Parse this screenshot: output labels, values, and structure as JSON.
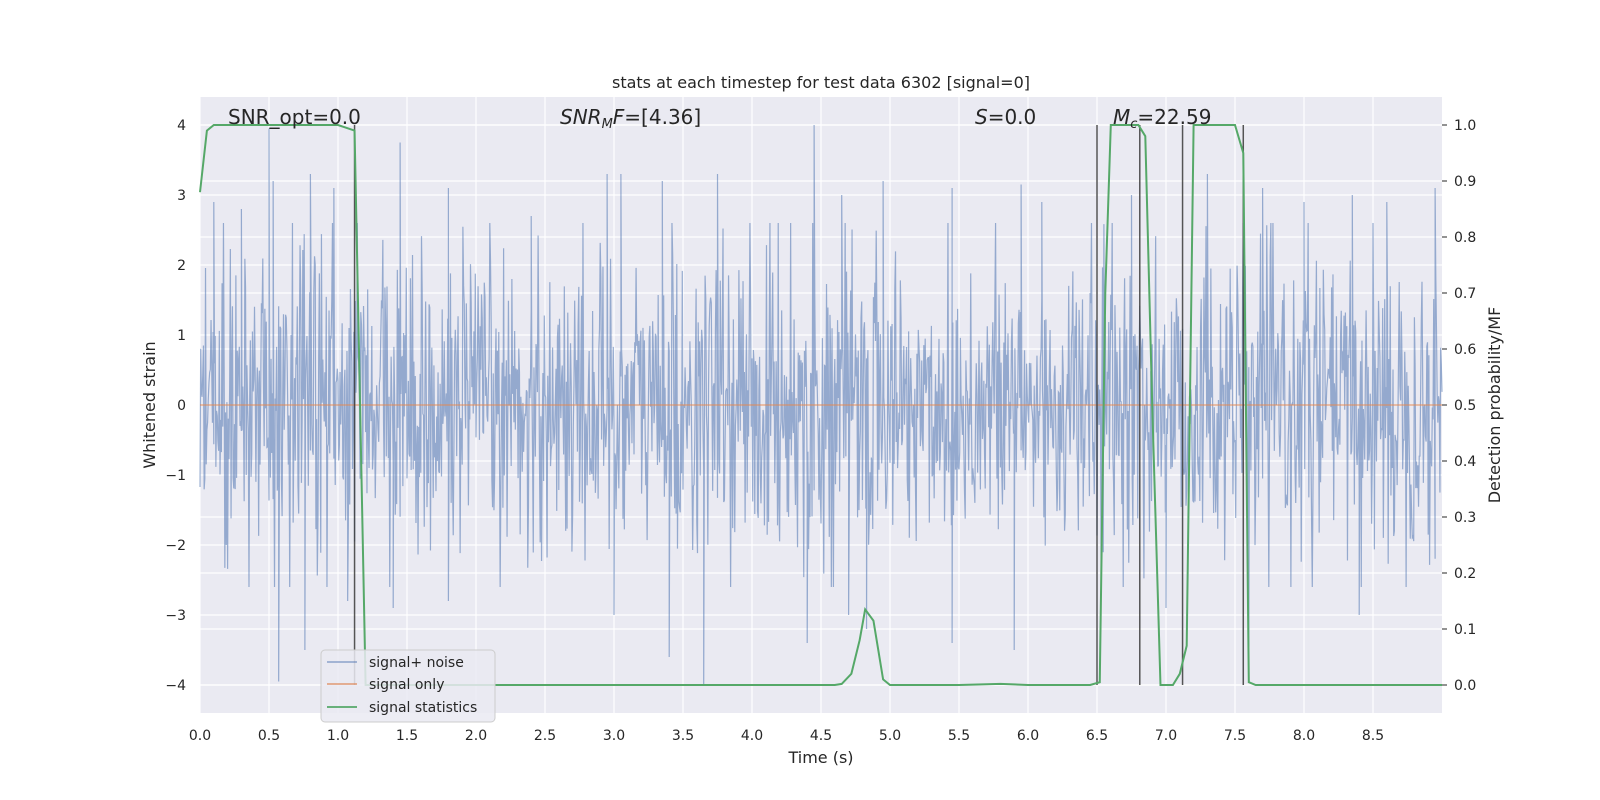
{
  "chart_data": {
    "type": "line",
    "title": "stats at each timestep for test data 6302 [signal=0]",
    "xlabel": "Time (s)",
    "ylabel": "Whitened strain",
    "y2label": "Detection probability/MF",
    "xlim": [
      0.0,
      9.0
    ],
    "ylim": [
      -4.4,
      4.4
    ],
    "y2lim": [
      -0.05,
      1.05
    ],
    "xticks": [
      "0.0",
      "0.5",
      "1.0",
      "1.5",
      "2.0",
      "2.5",
      "3.0",
      "3.5",
      "4.0",
      "4.5",
      "5.0",
      "5.5",
      "6.0",
      "6.5",
      "7.0",
      "7.5",
      "8.0",
      "8.5"
    ],
    "yticks": [
      "4",
      "3",
      "2",
      "1",
      "0",
      "−1",
      "−2",
      "−3",
      "−4"
    ],
    "y2ticks": [
      "1.0",
      "0.9",
      "0.8",
      "0.7",
      "0.6",
      "0.5",
      "0.4",
      "0.3",
      "0.2",
      "0.1",
      "0.0"
    ],
    "grid": true,
    "legend_position": "lower-left",
    "legend": [
      "signal+ noise",
      "signal only",
      "signal statistics"
    ],
    "annotations": [
      {
        "text": "SNR_opt=0.0",
        "x": 0.2
      },
      {
        "text": "SNR_MF=[4.36]",
        "x": 2.6
      },
      {
        "text": "S=0.0",
        "x": 5.6
      },
      {
        "text": "M_c=22.59",
        "x": 6.7
      }
    ],
    "series": [
      {
        "name": "signal+ noise",
        "color": "#4c72b0",
        "note": "dense whitened-strain noise, bulk within about ±2.2, peaks to ±4",
        "peaks_up": [
          [
            0.1,
            2.9
          ],
          [
            0.3,
            2.8
          ],
          [
            0.5,
            3.95
          ],
          [
            0.53,
            3.2
          ],
          [
            0.8,
            3.3
          ],
          [
            0.97,
            3.1
          ],
          [
            1.45,
            3.75
          ],
          [
            1.8,
            3.1
          ],
          [
            2.4,
            2.7
          ],
          [
            2.95,
            3.3
          ],
          [
            3.05,
            3.3
          ],
          [
            3.35,
            3.2
          ],
          [
            3.75,
            3.3
          ],
          [
            4.45,
            4.0
          ],
          [
            4.65,
            3.0
          ],
          [
            4.95,
            3.2
          ],
          [
            5.45,
            3.1
          ],
          [
            5.95,
            3.15
          ],
          [
            6.1,
            2.9
          ],
          [
            6.75,
            3.0
          ],
          [
            7.3,
            3.3
          ],
          [
            7.7,
            3.1
          ],
          [
            8.0,
            2.9
          ],
          [
            8.35,
            3.0
          ],
          [
            8.6,
            2.9
          ],
          [
            8.95,
            3.1
          ]
        ],
        "peaks_down": [
          [
            0.57,
            -3.95
          ],
          [
            0.76,
            -3.5
          ],
          [
            1.07,
            -2.8
          ],
          [
            1.4,
            -2.9
          ],
          [
            1.8,
            -2.8
          ],
          [
            3.0,
            -3.0
          ],
          [
            3.4,
            -3.6
          ],
          [
            3.65,
            -4.0
          ],
          [
            4.4,
            -3.4
          ],
          [
            4.7,
            -3.0
          ],
          [
            4.83,
            -3.2
          ],
          [
            5.45,
            -3.4
          ],
          [
            5.9,
            -3.5
          ],
          [
            7.0,
            -2.9
          ],
          [
            7.6,
            -3.45
          ],
          [
            8.4,
            -3.0
          ]
        ]
      },
      {
        "name": "signal only",
        "color": "#dd8452",
        "x": [
          0.0,
          9.0
        ],
        "y": [
          0.0,
          0.0
        ]
      },
      {
        "name": "signal statistics",
        "color": "#55a868",
        "axis": "right",
        "x": [
          0.0,
          0.05,
          0.1,
          0.2,
          1.0,
          1.12,
          1.16,
          1.2,
          2.0,
          4.6,
          4.65,
          4.72,
          4.78,
          4.82,
          4.88,
          4.95,
          5.0,
          5.5,
          5.8,
          6.0,
          6.45,
          6.52,
          6.56,
          6.6,
          6.8,
          6.85,
          6.9,
          6.96,
          7.05,
          7.1,
          7.15,
          7.2,
          7.45,
          7.5,
          7.56,
          7.6,
          7.65,
          8.0,
          9.0
        ],
        "y": [
          0.88,
          0.99,
          1.0,
          1.0,
          1.0,
          0.99,
          0.5,
          0.0,
          0.0,
          0.0,
          0.002,
          0.02,
          0.08,
          0.135,
          0.115,
          0.01,
          0.0,
          0.0,
          0.002,
          0.0,
          0.0,
          0.005,
          0.7,
          1.0,
          1.0,
          0.98,
          0.5,
          0.0,
          0.0,
          0.02,
          0.07,
          1.0,
          1.0,
          1.0,
          0.95,
          0.005,
          0.0,
          0.0,
          0.0
        ]
      }
    ],
    "vlines": [
      1.12,
      6.5,
      6.81,
      7.12,
      7.56
    ]
  }
}
